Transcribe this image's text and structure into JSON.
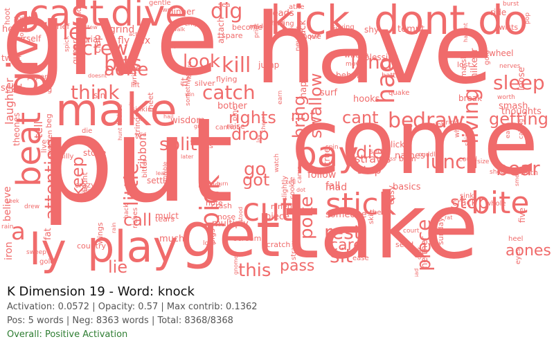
{
  "panel": {
    "title": "K Dimension 19 - Word: knock",
    "metrics": "Activation: 0.0572 | Opacity: 0.57 | Max contrib: 0.1362",
    "counts": "Pos: 5 words | Neg: 8363 words | Total: 8368/8368",
    "overall": "Overall: Positive Activation"
  },
  "cloud": {
    "color": "#f06b6b",
    "horizontal": [
      "give",
      "have",
      "put",
      "come",
      "take",
      "make",
      "cast",
      "dive",
      "kick",
      "dont",
      "do",
      "get",
      "play",
      "ly",
      "cut",
      "stick",
      "pay",
      "bite",
      "draw",
      "be",
      "getting",
      "rights",
      "not",
      "cant",
      "think",
      "catch",
      "sleep",
      "kill",
      "dig",
      "lend",
      "bear",
      "lunch",
      "stop",
      "rest",
      "care",
      "sit",
      "aones",
      "this",
      "pass",
      "lie",
      "go",
      "got",
      "die",
      "drop",
      "call",
      "split",
      "look",
      "screw",
      "bits",
      "aone",
      "let",
      "grind",
      "fly",
      "fall",
      "mad",
      "step",
      "straws",
      "follow",
      "a",
      "alone",
      "fix"
    ],
    "vertical": [
      "beat",
      "attention",
      "ribbon",
      "pick",
      "poke",
      "piece",
      "living",
      "swallow",
      "bring",
      "keep",
      "little",
      "laughter",
      "believe",
      "iron",
      "tell",
      "give",
      "hao"
    ],
    "small": [
      "never",
      "thinking",
      "flying",
      "live",
      "stone",
      "sweep",
      "gnomes",
      "cookie",
      "calling",
      "power",
      "chips",
      "ship",
      "crash",
      "hunt",
      "turn",
      "wisdom",
      "grind",
      "hack",
      "court",
      "crack",
      "screaming",
      "glint",
      "burst",
      "become",
      "could",
      "cook",
      "shave",
      "lost",
      "glory",
      "sunday",
      "paper",
      "ribbons",
      "queer",
      "beg",
      "sea",
      "quake",
      "behold",
      "havent",
      "two",
      "puts",
      "spare",
      "scratch",
      "heel",
      "their",
      "faith",
      "gold",
      "note",
      "scream",
      "grass",
      "couldnt",
      "earn",
      "leads",
      "move",
      "size",
      "sin",
      "slack",
      "sinking",
      "sheet",
      "straw",
      "ladies",
      "warrant",
      "meet",
      "jump",
      "smash",
      "attach",
      "brass",
      "something",
      "someone",
      "quit",
      "surf",
      "shove",
      "lick",
      "goes",
      "whole",
      "why",
      "fit",
      "win",
      "true",
      "die",
      "watch",
      "nails",
      "lay",
      "grief",
      "ease",
      "rain",
      "names",
      "stumble",
      "silver",
      "crazy",
      "action",
      "wild",
      "twists",
      "fetch",
      "walk",
      "mind",
      "hooks",
      "riches",
      "raise",
      "cheer",
      "blessing",
      "stood",
      "gentle",
      "dinner",
      "athe",
      "skin",
      "neither",
      "lose",
      "bother",
      "cuddle",
      "saying",
      "sweeten",
      "smells",
      "nerves",
      "pigs",
      "seek",
      "hoot",
      "pop",
      "carve",
      "made",
      "dot",
      "much",
      "yourself",
      "bum",
      "milkeer",
      "mulct",
      "lift",
      "send",
      "five",
      "settle",
      "tears",
      "basics",
      "assad",
      "pine",
      "write",
      "doesnt",
      "catching",
      "stew",
      "china",
      "thoughts",
      "country",
      "print",
      "whose",
      "break",
      "seed",
      "sink",
      "hear",
      "loose",
      "settle",
      "rain",
      "rat",
      "slightly",
      "trial",
      "twist",
      "hail",
      "ninepin",
      "spick",
      "bitter",
      "worth",
      "marsh",
      "fat",
      "silly",
      "gold",
      "nose",
      "shy",
      "shoes",
      "wheel",
      "later",
      "happen",
      "lead",
      "easy",
      "piece",
      "wings",
      "pride",
      "multiply",
      "strings",
      "cannot",
      "ride",
      "clap",
      "theones",
      "tempt",
      "spin",
      "drew",
      "tell",
      "yourits",
      "wander",
      "eat",
      "battle",
      "eyes"
    ]
  }
}
